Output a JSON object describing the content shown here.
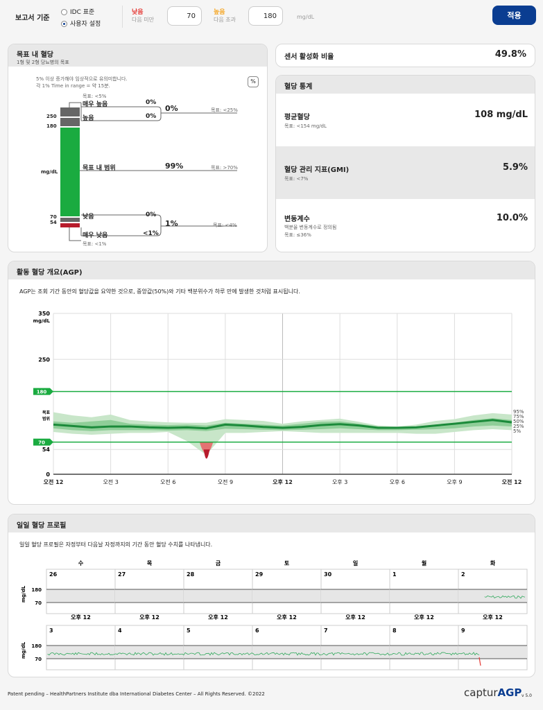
{
  "settings": {
    "report_basis_label": "보고서 기준",
    "idc_standard_label": "IDC 표준",
    "custom_label": "사용자 설정",
    "low_title": "낮음",
    "low_sub": "다음 미만",
    "low_value": "70",
    "high_title": "높음",
    "high_sub": "다음 초과",
    "high_value": "180",
    "unit": "mg/dL",
    "apply_label": "적용",
    "colors": {
      "low": "#e53935",
      "high": "#f5a623",
      "accent": "#0a3d91"
    }
  },
  "tir": {
    "title": "목표 내 혈당",
    "subtitle": "1형 및 2형 당뇨병의 목표",
    "note1": "5% 이상 증가해야 임상적으로 유의미합니다.",
    "note2": "각 1% Time in range = 약 15분.",
    "pct_icon": "%",
    "very_high_goal": "목표: <5%",
    "very_high_label": "매우 높음",
    "very_high_pct": "0%",
    "high_label": "높음",
    "high_pct": "0%",
    "high_combined": "0%",
    "high_combined_goal": "목표: <25%",
    "in_range_label": "목표 내 범위",
    "in_range_pct": "99%",
    "in_range_goal": "목표: >70%",
    "low_label": "낮음",
    "low_pct": "0%",
    "very_low_label": "매우 낮음",
    "very_low_pct": "<1%",
    "low_combined": "1%",
    "low_combined_goal": "목표: <4%",
    "very_low_goal": "목표: <1%",
    "axis_250": "250",
    "axis_180": "180",
    "axis_unit": "mg/dL",
    "axis_70": "70",
    "axis_54": "54",
    "bar_pcts": {
      "very_high": 0,
      "high": 0,
      "in_range": 99,
      "low": 0,
      "very_low": 0.5
    }
  },
  "sensor": {
    "label": "센서 활성화 비율",
    "value": "49.8%"
  },
  "stats": {
    "title": "혈당 통계",
    "items": [
      {
        "label": "평균혈당",
        "sub": "목표: <154 mg/dL",
        "sub2": "",
        "value": "108 mg/dL"
      },
      {
        "label": "혈당 관리 지표(GMI)",
        "sub": "목표: <7%",
        "sub2": "",
        "value": "5.9%"
      },
      {
        "label": "변동계수",
        "sub": "백분율 변동계수로 정의됨",
        "sub2": "목표: ≤36%",
        "value": "10.0%"
      }
    ]
  },
  "agp": {
    "title": "활동 혈당 개요(AGP)",
    "description": "AGP는 조회 기간 동안의 혈당값을 요약한 것으로, 중앙값(50%)와 기타 백분위수가 하루 만에 발생한 것처럼 표시됩니다.",
    "y_unit": "mg/dL",
    "y_350": "350",
    "y_250": "250",
    "y_180": "180",
    "y_target": "목표",
    "y_range": "범위",
    "y_70": "70",
    "y_54": "54",
    "y_0": "0",
    "x_labels": [
      "오전 12",
      "오전 3",
      "오전 6",
      "오전 9",
      "오후 12",
      "오후 3",
      "오후 6",
      "오후 9",
      "오전 12"
    ],
    "legend": [
      "95%",
      "75%",
      "50%",
      "25%",
      "5%"
    ]
  },
  "chart_data": {
    "type": "area",
    "title": "활동 혈당 개요(AGP)",
    "xlabel": "",
    "ylabel": "mg/dL",
    "ylim": [
      0,
      350
    ],
    "x": [
      "00:00",
      "01:00",
      "02:00",
      "03:00",
      "04:00",
      "05:00",
      "06:00",
      "07:00",
      "08:00",
      "09:00",
      "10:00",
      "11:00",
      "12:00",
      "13:00",
      "14:00",
      "15:00",
      "16:00",
      "17:00",
      "18:00",
      "19:00",
      "20:00",
      "21:00",
      "22:00",
      "23:00",
      "24:00"
    ],
    "series": [
      {
        "name": "95%",
        "values": [
          135,
          128,
          124,
          130,
          118,
          115,
          113,
          112,
          112,
          120,
          118,
          116,
          110,
          115,
          118,
          121,
          114,
          106,
          104,
          108,
          116,
          120,
          128,
          133,
          130
        ]
      },
      {
        "name": "75%",
        "values": [
          115,
          112,
          115,
          118,
          110,
          108,
          107,
          108,
          106,
          112,
          110,
          108,
          106,
          110,
          114,
          115,
          110,
          104,
          103,
          104,
          108,
          112,
          118,
          122,
          118
        ]
      },
      {
        "name": "50%",
        "values": [
          108,
          105,
          102,
          104,
          104,
          102,
          101,
          102,
          100,
          108,
          106,
          103,
          101,
          103,
          107,
          109,
          106,
          101,
          101,
          102,
          106,
          110,
          114,
          118,
          113
        ]
      },
      {
        "name": "25%",
        "values": [
          100,
          96,
          94,
          96,
          96,
          96,
          95,
          96,
          94,
          99,
          98,
          97,
          96,
          97,
          98,
          100,
          98,
          96,
          96,
          97,
          98,
          100,
          104,
          106,
          104
        ]
      },
      {
        "name": "5%",
        "values": [
          92,
          88,
          86,
          88,
          90,
          90,
          92,
          72,
          42,
          90,
          90,
          92,
          94,
          92,
          90,
          90,
          90,
          90,
          90,
          88,
          88,
          92,
          96,
          98,
          96
        ]
      }
    ],
    "target_range": [
      70,
      180
    ]
  },
  "daily": {
    "title": "일일 혈당 프로필",
    "description": "일일 혈당 프로필은 자정부터 다음날 자정까지의 기간 동안 혈당 수치를 나타냅니다.",
    "weekdays": [
      "수",
      "목",
      "금",
      "토",
      "일",
      "월",
      "화"
    ],
    "week1_days": [
      "26",
      "27",
      "28",
      "29",
      "30",
      "1",
      "2"
    ],
    "week2_days": [
      "3",
      "4",
      "5",
      "6",
      "7",
      "8",
      "9"
    ],
    "noon_label": "오후 12",
    "y_unit": "mg/dL",
    "y_180": "180",
    "y_70": "70"
  },
  "footer": {
    "patent": "Patent pending – HealthPartners Institute dba International Diabetes Center – All Rights Reserved. ©2022",
    "logo_captur": "captur",
    "logo_agp": "AGP",
    "version": "v 5.0"
  }
}
